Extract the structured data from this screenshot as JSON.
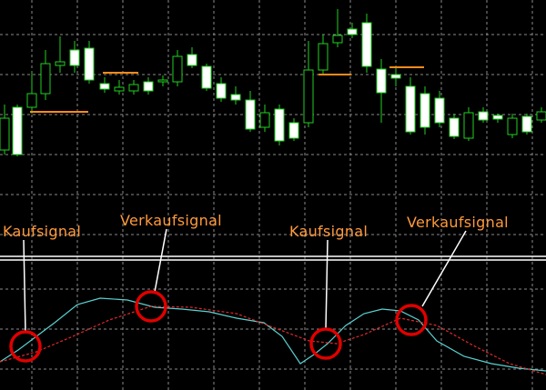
{
  "annotations": [
    {
      "label": "Kaufsignal"
    },
    {
      "label": "Verkaufsignal"
    },
    {
      "label": "Kaufsignal"
    },
    {
      "label": "Verkaufsignal"
    }
  ]
}
